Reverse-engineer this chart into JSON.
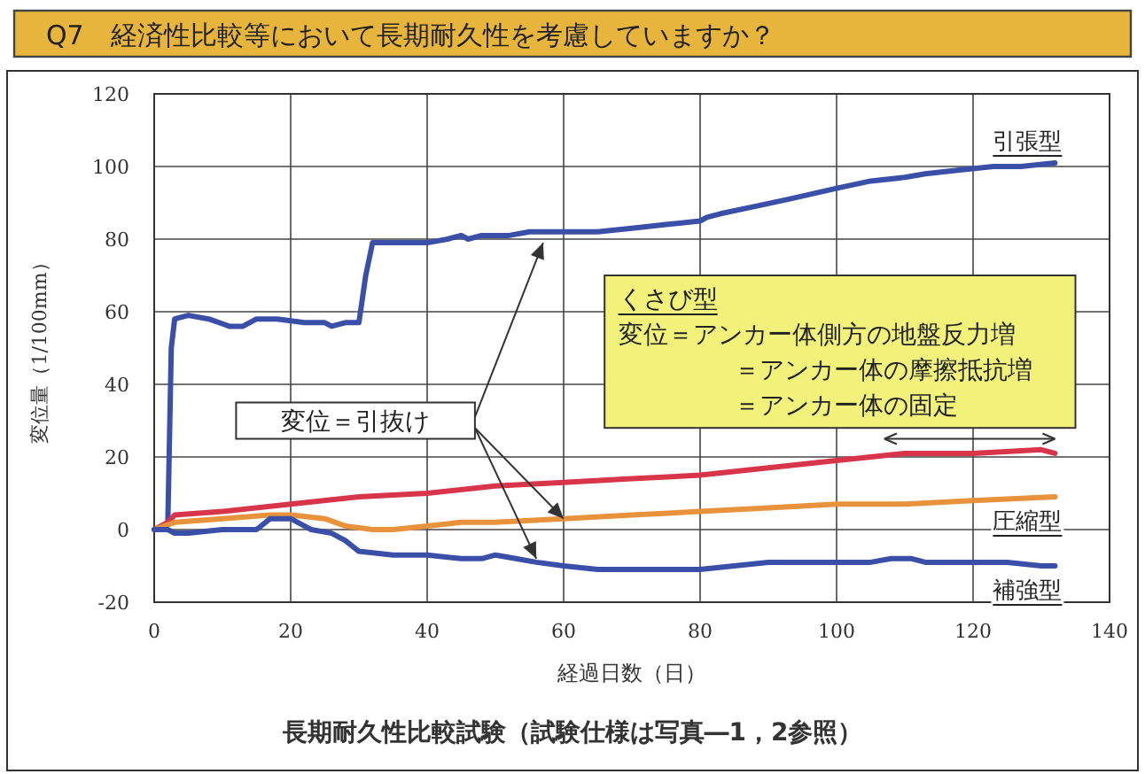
{
  "chart_data": {
    "type": "line",
    "title": "Q7　経済性比較等において長期耐久性を考慮していますか？",
    "xlabel": "経過日数（日）",
    "ylabel": "変位量（1/100mm）",
    "xlim": [
      0,
      140
    ],
    "xticks": [
      0,
      20,
      40,
      60,
      80,
      100,
      120,
      140
    ],
    "ylim": [
      -20,
      120
    ],
    "yticks": [
      -20,
      0,
      20,
      40,
      60,
      80,
      100,
      120
    ],
    "grid": true,
    "marker": "none",
    "line_style": "solid",
    "annotations": [
      "変位＝引抜け",
      "くさび型",
      "変位＝アンカー体側方の地盤反力増",
      "＝アンカー体の摩擦抵抗増",
      "＝アンカー体の固定",
      "長期耐久性比較試験（試験仕様は写真―1，2参照）"
    ],
    "series": [
      {
        "name": "引張型",
        "color": "#3a4fa8",
        "x": [
          0,
          1,
          2,
          2.5,
          3,
          5,
          8,
          11,
          13,
          15,
          18,
          22,
          25,
          26,
          28,
          30,
          31,
          32,
          35,
          40,
          43,
          45,
          46,
          48,
          52,
          55,
          60,
          65,
          70,
          75,
          80,
          81,
          83,
          88,
          93,
          100,
          105,
          110,
          113,
          118,
          123,
          127,
          132
        ],
        "values": [
          0,
          0,
          2,
          50,
          58,
          59,
          58,
          56,
          56,
          58,
          58,
          57,
          57,
          56,
          57,
          57,
          70,
          79,
          79,
          79,
          80,
          81,
          80,
          81,
          81,
          82,
          82,
          82,
          83,
          84,
          85,
          86,
          87,
          89,
          91,
          94,
          96,
          97,
          98,
          99,
          100,
          100,
          101
        ]
      },
      {
        "color": "#d8344a",
        "x": [
          0,
          2,
          3,
          10,
          20,
          30,
          40,
          50,
          60,
          70,
          80,
          90,
          100,
          105,
          110,
          120,
          130,
          132
        ],
        "values": [
          0,
          2,
          4,
          5,
          7,
          9,
          10,
          12,
          13,
          14,
          15,
          17,
          19,
          20,
          21,
          21,
          22,
          21
        ]
      },
      {
        "name": "圧縮型",
        "color": "#e8923c",
        "x": [
          0,
          3,
          10,
          17,
          20,
          25,
          28,
          32,
          35,
          40,
          45,
          50,
          60,
          70,
          80,
          90,
          100,
          110,
          120,
          132
        ],
        "values": [
          0,
          2,
          3,
          4,
          4,
          3,
          1,
          0,
          0,
          1,
          2,
          2,
          3,
          4,
          5,
          6,
          7,
          7,
          8,
          9
        ]
      },
      {
        "name": "補強型",
        "color": "#3a4fa8",
        "x": [
          0,
          2,
          3,
          5,
          10,
          15,
          17,
          20,
          22,
          23,
          26,
          28,
          30,
          35,
          40,
          45,
          48,
          50,
          53,
          56,
          60,
          65,
          70,
          80,
          85,
          90,
          100,
          105,
          108,
          111,
          113,
          120,
          125,
          130,
          132
        ],
        "values": [
          0,
          0,
          -1,
          -1,
          0,
          0,
          3,
          3,
          1,
          0,
          -1,
          -3,
          -6,
          -7,
          -7,
          -8,
          -8,
          -7,
          -8,
          -9,
          -10,
          -11,
          -11,
          -11,
          -10,
          -9,
          -9,
          -9,
          -8,
          -8,
          -9,
          -9,
          -9,
          -10,
          -10
        ]
      }
    ]
  }
}
